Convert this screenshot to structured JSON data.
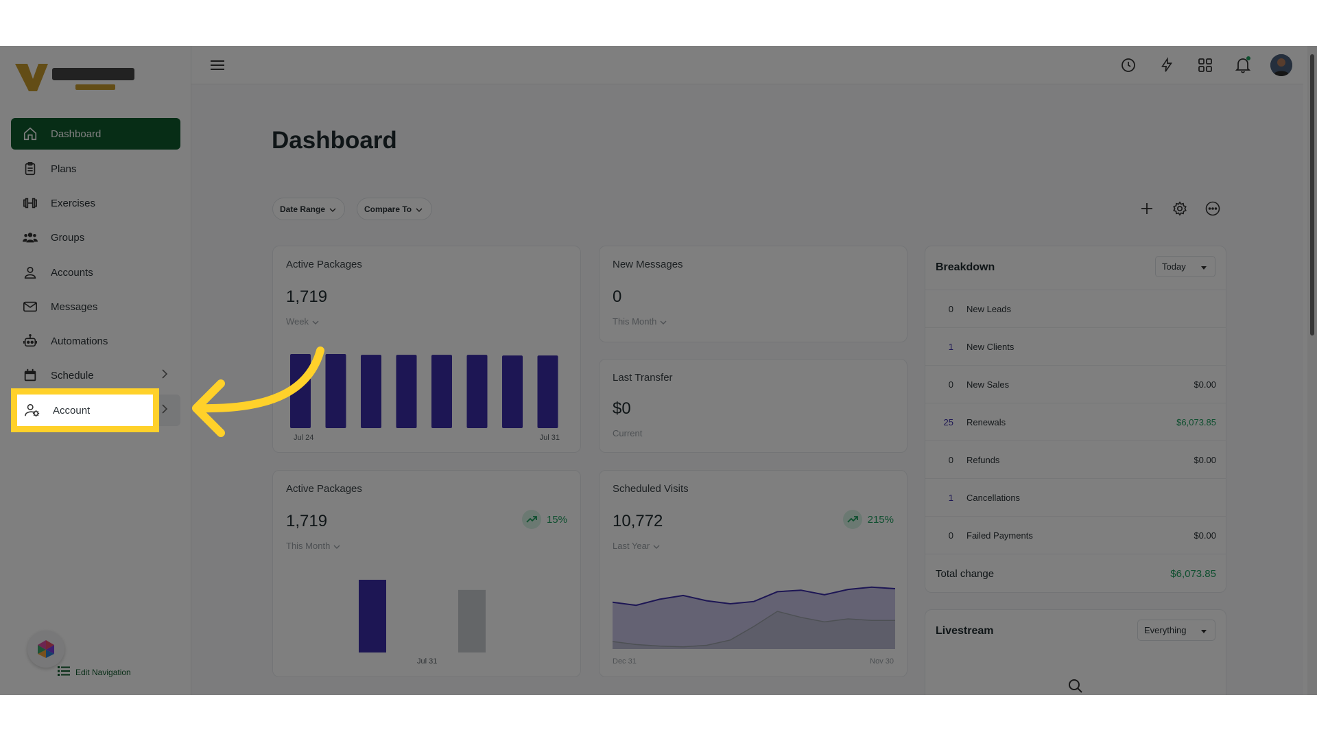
{
  "sidebar": {
    "items": [
      {
        "label": "Dashboard",
        "icon": "home-icon"
      },
      {
        "label": "Plans",
        "icon": "clipboard-icon"
      },
      {
        "label": "Exercises",
        "icon": "dumbbell-icon"
      },
      {
        "label": "Groups",
        "icon": "users-icon"
      },
      {
        "label": "Accounts",
        "icon": "user-icon"
      },
      {
        "label": "Messages",
        "icon": "mail-icon"
      },
      {
        "label": "Automations",
        "icon": "robot-icon"
      },
      {
        "label": "Schedule",
        "icon": "calendar-icon"
      },
      {
        "label": "Account",
        "icon": "user-gear-icon"
      }
    ],
    "edit_nav": "Edit Navigation"
  },
  "main": {
    "title": "Dashboard",
    "filters": {
      "date_range": "Date Range",
      "compare_to": "Compare To"
    }
  },
  "cards": {
    "active_packages_week": {
      "title": "Active Packages",
      "value": "1,719",
      "period": "Week",
      "x_start": "Jul 24",
      "x_end": "Jul 31",
      "bars": [
        1.0,
        1.0,
        0.99,
        0.99,
        0.99,
        0.99,
        0.98,
        0.98
      ]
    },
    "new_messages": {
      "title": "New Messages",
      "value": "0",
      "period": "This Month"
    },
    "last_transfer": {
      "title": "Last Transfer",
      "value": "$0",
      "period": "Current"
    },
    "active_packages_month": {
      "title": "Active Packages",
      "value": "1,719",
      "period": "This Month",
      "trend": "15%",
      "x_label": "Jul 31",
      "bars": [
        {
          "value": 1.0,
          "color": "#3a2da8"
        },
        {
          "value": 0.86,
          "color": "#c8ccd0"
        }
      ]
    },
    "scheduled_visits": {
      "title": "Scheduled Visits",
      "value": "10,772",
      "period": "Last Year",
      "trend": "215%",
      "x_start": "Dec 31",
      "x_end": "Nov 30",
      "series_current": [
        0.62,
        0.58,
        0.66,
        0.71,
        0.64,
        0.6,
        0.63,
        0.76,
        0.78,
        0.72,
        0.79,
        0.82,
        0.8
      ],
      "series_previous": [
        0.1,
        0.06,
        0.04,
        0.03,
        0.05,
        0.12,
        0.3,
        0.5,
        0.42,
        0.36,
        0.4,
        0.38,
        0.38
      ]
    }
  },
  "breakdown": {
    "title": "Breakdown",
    "period": "Today",
    "rows": [
      {
        "count": "0",
        "label": "New Leads",
        "amount": ""
      },
      {
        "count": "1",
        "label": "New Clients",
        "amount": ""
      },
      {
        "count": "0",
        "label": "New Sales",
        "amount": "$0.00"
      },
      {
        "count": "25",
        "label": "Renewals",
        "amount": "$6,073.85"
      },
      {
        "count": "0",
        "label": "Refunds",
        "amount": "$0.00"
      },
      {
        "count": "1",
        "label": "Cancellations",
        "amount": ""
      },
      {
        "count": "0",
        "label": "Failed Payments",
        "amount": "$0.00"
      }
    ],
    "total_label": "Total change",
    "total_amount": "$6,073.85"
  },
  "livestream": {
    "title": "Livestream",
    "filter": "Everything"
  },
  "colors": {
    "brand": "#0f5a2c",
    "bar": "#3a2da8",
    "positive": "#1e9e5f",
    "highlight": "#ffd12a"
  }
}
